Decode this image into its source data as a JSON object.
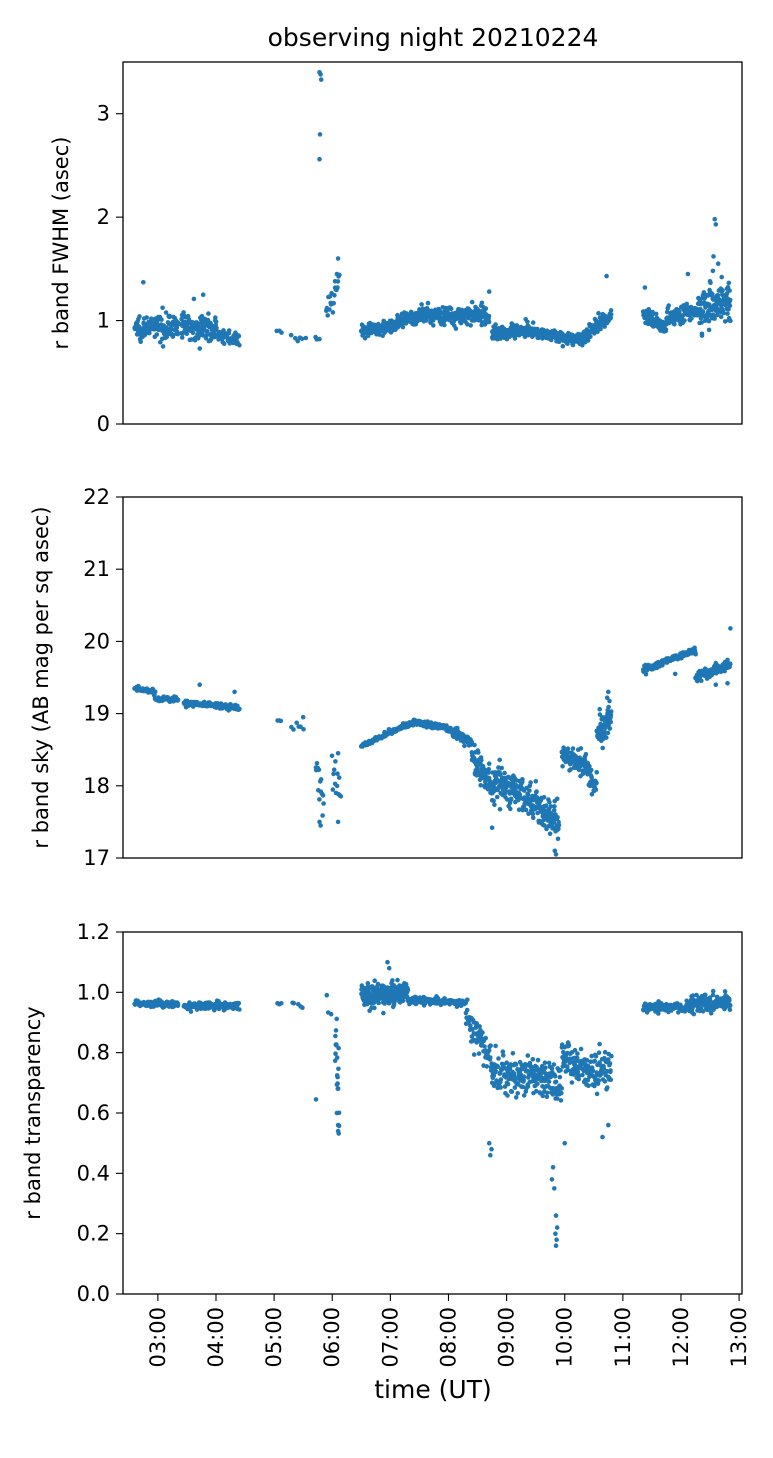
{
  "figure": {
    "title": "observing night 20210224",
    "xlabel": "time (UT)",
    "accent_color": "#1f77b4"
  },
  "chart_data": [
    {
      "type": "scatter",
      "panel": "top",
      "title": "observing night 20210224",
      "ylabel": "r band FWHM (asec)",
      "xlabel": "",
      "xlim": [
        2.4,
        13.05
      ],
      "ylim": [
        0,
        3.5
      ],
      "yticks": [
        "0",
        "1",
        "2",
        "3"
      ],
      "ytick_values": [
        0,
        1,
        2,
        3
      ],
      "show_xticklabels": false,
      "grid": false,
      "segments": [
        {
          "x0": 2.6,
          "x1": 3.35,
          "base0": 0.93,
          "base1": 0.95,
          "noise": 0.1,
          "n": 150
        },
        {
          "x0": 3.4,
          "x1": 4.0,
          "base0": 0.95,
          "base1": 0.92,
          "noise": 0.11,
          "n": 120
        },
        {
          "x0": 4.0,
          "x1": 4.4,
          "base0": 0.88,
          "base1": 0.8,
          "noise": 0.06,
          "n": 50
        },
        {
          "x0": 5.05,
          "x1": 5.12,
          "base0": 0.9,
          "base1": 0.9,
          "noise": 0.02,
          "n": 3
        },
        {
          "x0": 5.3,
          "x1": 5.55,
          "base0": 0.81,
          "base1": 0.84,
          "noise": 0.03,
          "n": 6
        },
        {
          "x0": 5.7,
          "x1": 5.78,
          "base0": 0.82,
          "base1": 0.82,
          "noise": 0.02,
          "n": 3
        },
        {
          "x0": 5.9,
          "x1": 6.12,
          "base0": 1.05,
          "base1": 1.35,
          "noise": 0.13,
          "n": 20
        },
        {
          "x0": 6.5,
          "x1": 7.0,
          "base0": 0.9,
          "base1": 0.94,
          "noise": 0.05,
          "n": 110
        },
        {
          "x0": 7.0,
          "x1": 7.5,
          "base0": 0.95,
          "base1": 1.04,
          "noise": 0.06,
          "n": 110
        },
        {
          "x0": 7.5,
          "x1": 8.7,
          "base0": 1.05,
          "base1": 1.05,
          "noise": 0.08,
          "n": 240
        },
        {
          "x0": 8.75,
          "x1": 9.4,
          "base0": 0.87,
          "base1": 0.92,
          "noise": 0.06,
          "n": 140
        },
        {
          "x0": 9.4,
          "x1": 10.3,
          "base0": 0.9,
          "base1": 0.8,
          "noise": 0.05,
          "n": 170
        },
        {
          "x0": 10.3,
          "x1": 10.8,
          "base0": 0.84,
          "base1": 1.05,
          "noise": 0.07,
          "n": 110
        },
        {
          "x0": 11.35,
          "x1": 11.75,
          "base0": 1.05,
          "base1": 0.95,
          "noise": 0.07,
          "n": 70
        },
        {
          "x0": 11.75,
          "x1": 12.3,
          "base0": 1.02,
          "base1": 1.1,
          "noise": 0.08,
          "n": 110
        },
        {
          "x0": 12.3,
          "x1": 12.85,
          "base0": 1.1,
          "base1": 1.2,
          "noise": 0.17,
          "n": 130
        }
      ],
      "outliers": [
        [
          5.78,
          3.4
        ],
        [
          5.8,
          3.38
        ],
        [
          5.81,
          3.33
        ],
        [
          5.79,
          2.8
        ],
        [
          5.78,
          2.56
        ],
        [
          2.75,
          1.37
        ],
        [
          6.1,
          1.6
        ],
        [
          6.08,
          1.45
        ],
        [
          6.05,
          1.38
        ],
        [
          10.72,
          1.43
        ],
        [
          11.38,
          1.32
        ],
        [
          12.12,
          1.45
        ],
        [
          12.58,
          1.98
        ],
        [
          12.6,
          1.93
        ],
        [
          12.56,
          1.62
        ],
        [
          12.64,
          1.55
        ],
        [
          12.55,
          1.48
        ],
        [
          3.78,
          1.25
        ],
        [
          3.62,
          1.21
        ],
        [
          8.7,
          1.28
        ],
        [
          12.7,
          1.42
        ],
        [
          12.5,
          1.38
        ]
      ]
    },
    {
      "type": "scatter",
      "panel": "middle",
      "ylabel": "r band sky (AB mag per sq asec)",
      "xlabel": "",
      "xlim": [
        2.4,
        13.05
      ],
      "ylim": [
        17,
        22
      ],
      "yticks": [
        "17",
        "18",
        "19",
        "20",
        "21",
        "22"
      ],
      "ytick_values": [
        17,
        18,
        19,
        20,
        21,
        22
      ],
      "show_xticklabels": false,
      "grid": false,
      "segments": [
        {
          "x0": 2.6,
          "x1": 2.95,
          "base0": 19.35,
          "base1": 19.3,
          "noise": 0.03,
          "n": 50
        },
        {
          "x0": 2.95,
          "x1": 3.35,
          "base0": 19.2,
          "base1": 19.2,
          "noise": 0.03,
          "n": 55
        },
        {
          "x0": 3.45,
          "x1": 4.4,
          "base0": 19.15,
          "base1": 19.08,
          "noise": 0.04,
          "n": 130
        },
        {
          "x0": 5.05,
          "x1": 5.12,
          "base0": 18.9,
          "base1": 18.88,
          "noise": 0.02,
          "n": 3
        },
        {
          "x0": 5.3,
          "x1": 5.5,
          "base0": 18.82,
          "base1": 18.8,
          "noise": 0.05,
          "n": 6
        },
        {
          "x0": 5.72,
          "x1": 5.85,
          "base0": 18.2,
          "base1": 17.8,
          "noise": 0.35,
          "n": 14
        },
        {
          "x0": 6.0,
          "x1": 6.15,
          "base0": 18.2,
          "base1": 17.9,
          "noise": 0.28,
          "n": 14
        },
        {
          "x0": 6.5,
          "x1": 6.9,
          "base0": 18.55,
          "base1": 18.7,
          "noise": 0.03,
          "n": 70
        },
        {
          "x0": 6.9,
          "x1": 7.4,
          "base0": 18.72,
          "base1": 18.88,
          "noise": 0.03,
          "n": 80
        },
        {
          "x0": 7.4,
          "x1": 8.0,
          "base0": 18.88,
          "base1": 18.8,
          "noise": 0.04,
          "n": 90
        },
        {
          "x0": 8.0,
          "x1": 8.4,
          "base0": 18.78,
          "base1": 18.6,
          "noise": 0.06,
          "n": 70
        },
        {
          "x0": 8.4,
          "x1": 8.8,
          "base0": 18.4,
          "base1": 17.9,
          "noise": 0.2,
          "n": 90
        },
        {
          "x0": 8.8,
          "x1": 9.3,
          "base0": 18.1,
          "base1": 17.85,
          "noise": 0.22,
          "n": 110
        },
        {
          "x0": 9.3,
          "x1": 9.9,
          "base0": 17.85,
          "base1": 17.5,
          "noise": 0.22,
          "n": 130
        },
        {
          "x0": 9.95,
          "x1": 10.4,
          "base0": 18.4,
          "base1": 18.3,
          "noise": 0.15,
          "n": 90
        },
        {
          "x0": 10.4,
          "x1": 10.55,
          "base0": 18.2,
          "base1": 18.0,
          "noise": 0.18,
          "n": 30
        },
        {
          "x0": 10.55,
          "x1": 10.8,
          "base0": 18.7,
          "base1": 18.9,
          "noise": 0.2,
          "n": 60
        },
        {
          "x0": 11.35,
          "x1": 12.25,
          "base0": 19.6,
          "base1": 19.88,
          "noise": 0.04,
          "n": 160
        },
        {
          "x0": 12.25,
          "x1": 12.85,
          "base0": 19.5,
          "base1": 19.68,
          "noise": 0.07,
          "n": 100
        }
      ],
      "outliers": [
        [
          3.72,
          19.4
        ],
        [
          4.32,
          19.3
        ],
        [
          5.5,
          18.95
        ],
        [
          5.78,
          17.5
        ],
        [
          5.8,
          17.45
        ],
        [
          9.85,
          17.05
        ],
        [
          9.83,
          17.1
        ],
        [
          10.75,
          19.3
        ],
        [
          10.73,
          19.22
        ],
        [
          12.85,
          20.18
        ],
        [
          12.8,
          19.42
        ],
        [
          11.9,
          19.55
        ],
        [
          12.6,
          19.4
        ],
        [
          8.75,
          17.42
        ],
        [
          9.65,
          17.45
        ],
        [
          6.1,
          18.45
        ],
        [
          6.1,
          17.5
        ]
      ]
    },
    {
      "type": "scatter",
      "panel": "bottom",
      "ylabel": "r band transparency",
      "xlabel": "time (UT)",
      "xlim": [
        2.4,
        13.05
      ],
      "ylim": [
        0.0,
        1.2
      ],
      "yticks": [
        "0.0",
        "0.2",
        "0.4",
        "0.6",
        "0.8",
        "1.0",
        "1.2"
      ],
      "ytick_values": [
        0.0,
        0.2,
        0.4,
        0.6,
        0.8,
        1.0,
        1.2
      ],
      "xticks": [
        "03:00",
        "04:00",
        "05:00",
        "06:00",
        "07:00",
        "08:00",
        "09:00",
        "10:00",
        "11:00",
        "12:00",
        "13:00"
      ],
      "xtick_values": [
        3,
        4,
        5,
        6,
        7,
        8,
        9,
        10,
        11,
        12,
        13
      ],
      "grid": false,
      "segments": [
        {
          "x0": 2.6,
          "x1": 3.35,
          "base0": 0.965,
          "base1": 0.96,
          "noise": 0.01,
          "n": 110
        },
        {
          "x0": 3.45,
          "x1": 4.4,
          "base0": 0.955,
          "base1": 0.955,
          "noise": 0.012,
          "n": 130
        },
        {
          "x0": 5.05,
          "x1": 5.12,
          "base0": 0.96,
          "base1": 0.96,
          "noise": 0.005,
          "n": 3
        },
        {
          "x0": 5.3,
          "x1": 5.5,
          "base0": 0.96,
          "base1": 0.955,
          "noise": 0.01,
          "n": 5
        },
        {
          "x0": 5.9,
          "x1": 5.98,
          "base0": 0.97,
          "base1": 0.93,
          "noise": 0.02,
          "n": 3
        },
        {
          "x0": 6.05,
          "x1": 6.12,
          "base0": 0.8,
          "base1": 0.7,
          "noise": 0.13,
          "n": 20
        },
        {
          "x0": 6.5,
          "x1": 7.3,
          "base0": 0.99,
          "base1": 1.0,
          "noise": 0.035,
          "n": 220
        },
        {
          "x0": 7.3,
          "x1": 8.3,
          "base0": 0.975,
          "base1": 0.965,
          "noise": 0.01,
          "n": 140
        },
        {
          "x0": 8.3,
          "x1": 8.75,
          "base0": 0.92,
          "base1": 0.77,
          "noise": 0.05,
          "n": 70
        },
        {
          "x0": 8.75,
          "x1": 9.4,
          "base0": 0.74,
          "base1": 0.72,
          "noise": 0.06,
          "n": 110
        },
        {
          "x0": 9.4,
          "x1": 9.95,
          "base0": 0.73,
          "base1": 0.68,
          "noise": 0.06,
          "n": 100
        },
        {
          "x0": 9.95,
          "x1": 10.4,
          "base0": 0.78,
          "base1": 0.74,
          "noise": 0.05,
          "n": 80
        },
        {
          "x0": 10.4,
          "x1": 10.8,
          "base0": 0.73,
          "base1": 0.75,
          "noise": 0.07,
          "n": 70
        },
        {
          "x0": 11.35,
          "x1": 12.1,
          "base0": 0.955,
          "base1": 0.95,
          "noise": 0.015,
          "n": 120
        },
        {
          "x0": 12.1,
          "x1": 12.85,
          "base0": 0.96,
          "base1": 0.97,
          "noise": 0.025,
          "n": 140
        }
      ],
      "outliers": [
        [
          5.72,
          0.645
        ],
        [
          9.85,
          0.16
        ],
        [
          9.86,
          0.18
        ],
        [
          9.84,
          0.2
        ],
        [
          9.87,
          0.22
        ],
        [
          9.85,
          0.26
        ],
        [
          9.82,
          0.35
        ],
        [
          9.78,
          0.38
        ],
        [
          9.8,
          0.42
        ],
        [
          8.72,
          0.46
        ],
        [
          8.74,
          0.48
        ],
        [
          8.7,
          0.5
        ],
        [
          6.1,
          0.54
        ],
        [
          6.1,
          0.56
        ],
        [
          6.08,
          0.6
        ],
        [
          10.65,
          0.52
        ],
        [
          10.75,
          0.56
        ],
        [
          10.0,
          0.5
        ],
        [
          6.95,
          1.1
        ],
        [
          6.98,
          1.08
        ]
      ]
    }
  ]
}
